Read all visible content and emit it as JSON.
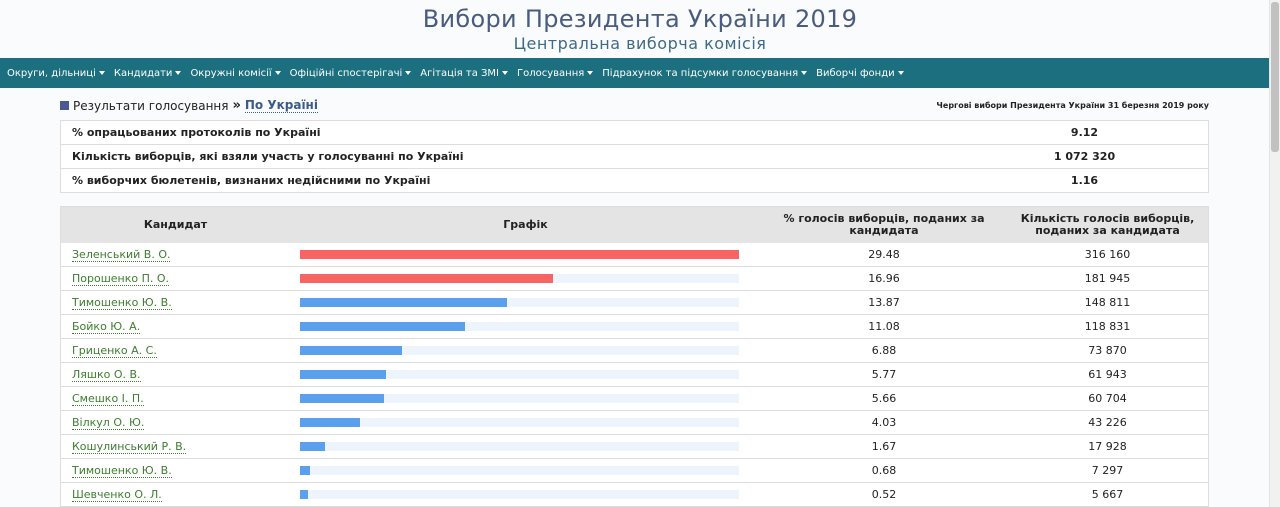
{
  "header": {
    "title": "Вибори Президента України 2019",
    "subtitle": "Центральна виборча комісія"
  },
  "nav": [
    {
      "label": "Округи, дільниці"
    },
    {
      "label": "Кандидати"
    },
    {
      "label": "Окружні комісії"
    },
    {
      "label": "Офіційні спостерігачі"
    },
    {
      "label": "Агітація та ЗМІ"
    },
    {
      "label": "Голосування"
    },
    {
      "label": "Підрахунок та підсумки голосування"
    },
    {
      "label": "Виборчі фонди"
    }
  ],
  "breadcrumb": {
    "part1": "Результати голосування",
    "sep": "»",
    "part2": "По Україні"
  },
  "election_note": "Чергові вибори Президента України 31 березня 2019 року",
  "summary": [
    {
      "label": "% опрацьованих протоколів по Україні",
      "value": "9.12"
    },
    {
      "label": "Кількість виборців, які взяли участь у голосуванні по Україні",
      "value": "1 072 320"
    },
    {
      "label": "% виборчих бюлетенів, визнаних недійсними по Україні",
      "value": "1.16"
    }
  ],
  "results": {
    "headers": {
      "candidate": "Кандидат",
      "chart": "Графік",
      "percent": "% голосів виборців, поданих за кандидата",
      "votes": "Кількість голосів виборців, поданих за кандидата"
    },
    "colors": {
      "top": "#f96364",
      "rest": "#5aa0ef",
      "track": "#eef4fb"
    },
    "max_percent": 29.48,
    "rows": [
      {
        "name": "Зеленський В. О.",
        "percent": "29.48",
        "votes": "316 160"
      },
      {
        "name": "Порошенко П. О.",
        "percent": "16.96",
        "votes": "181 945"
      },
      {
        "name": "Тимошенко Ю. В.",
        "percent": "13.87",
        "votes": "148 811"
      },
      {
        "name": "Бойко Ю. А.",
        "percent": "11.08",
        "votes": "118 831"
      },
      {
        "name": "Гриценко А. С.",
        "percent": "6.88",
        "votes": "73 870"
      },
      {
        "name": "Ляшко О. В.",
        "percent": "5.77",
        "votes": "61 943"
      },
      {
        "name": "Смешко І. П.",
        "percent": "5.66",
        "votes": "60 704"
      },
      {
        "name": "Вілкул О. Ю.",
        "percent": "4.03",
        "votes": "43 226"
      },
      {
        "name": "Кошулинський Р. В.",
        "percent": "1.67",
        "votes": "17 928"
      },
      {
        "name": "Тимошенко Ю. В.",
        "percent": "0.68",
        "votes": "7 297"
      },
      {
        "name": "Шевченко О. Л.",
        "percent": "0.52",
        "votes": "5 667"
      }
    ]
  }
}
